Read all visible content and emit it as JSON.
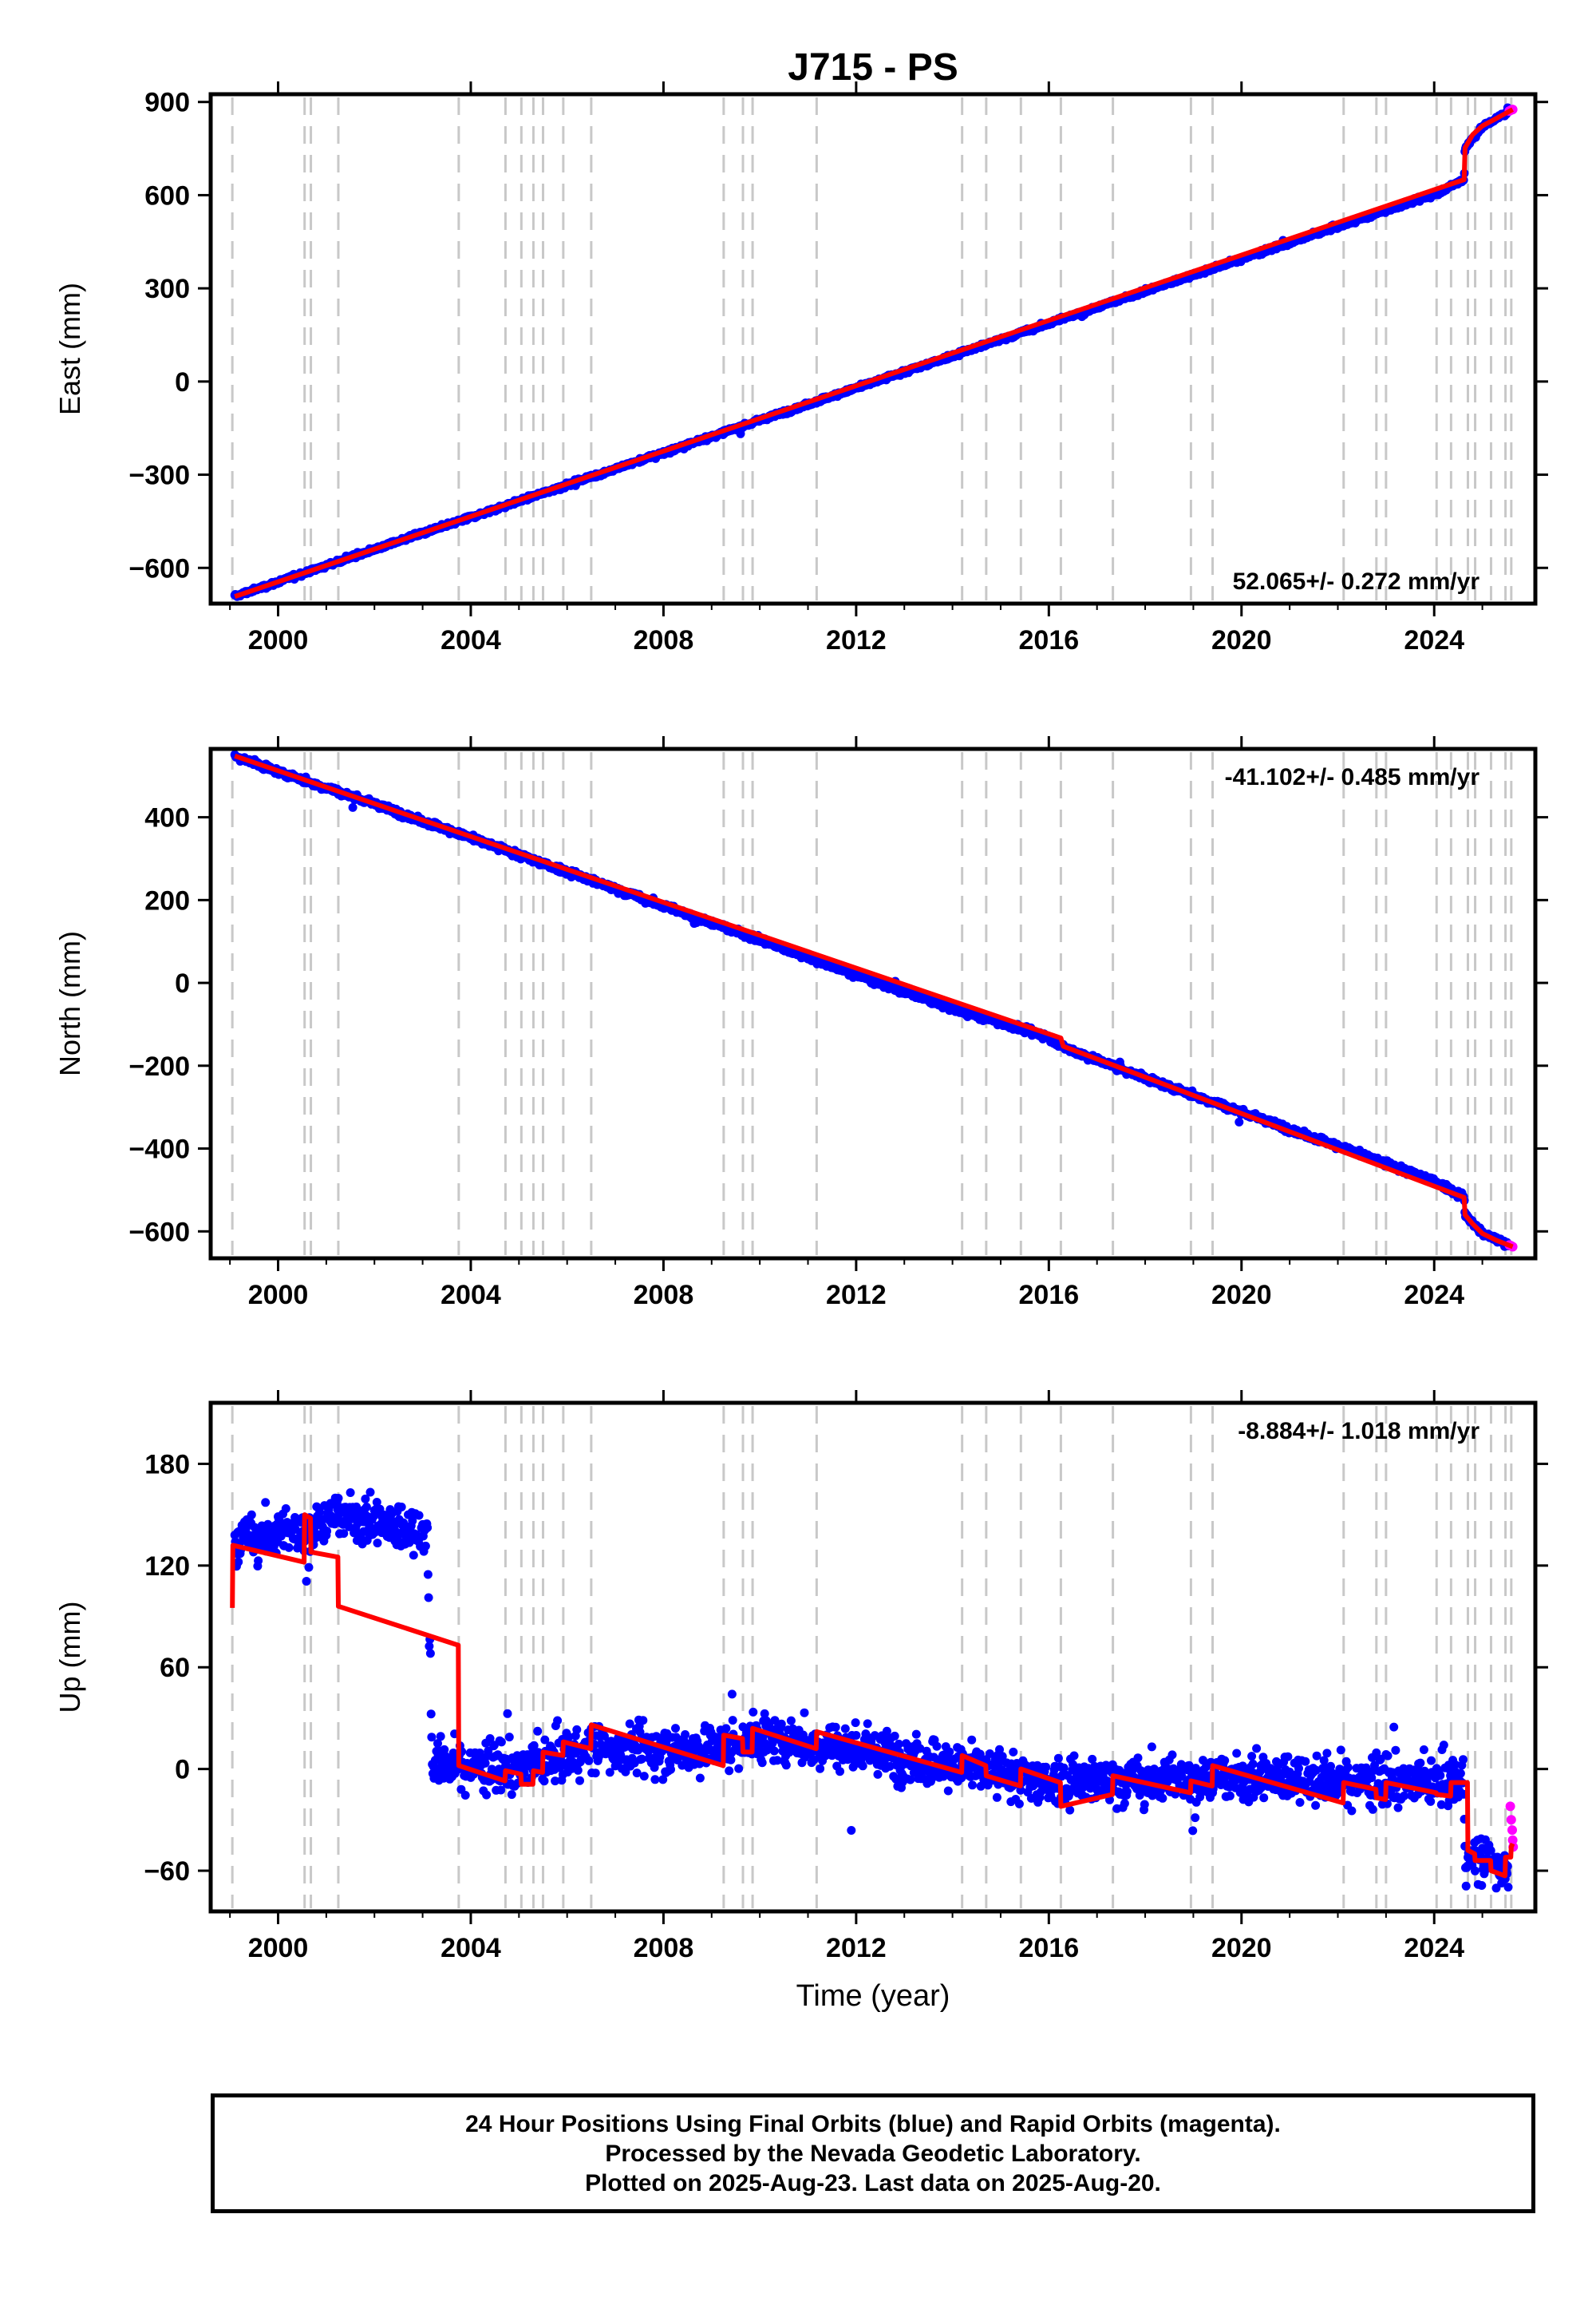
{
  "title": "J715 - PS",
  "xlabel": "Time (year)",
  "x_ticks": [
    2000,
    2004,
    2008,
    2012,
    2016,
    2020,
    2024
  ],
  "x_range": [
    1998.6,
    2026.1
  ],
  "equipment_change_years": [
    1999.05,
    2000.55,
    2000.68,
    2001.25,
    2003.75,
    2004.72,
    2005.05,
    2005.3,
    2005.5,
    2005.92,
    2006.5,
    2009.25,
    2009.65,
    2009.85,
    2011.18,
    2014.2,
    2014.7,
    2015.42,
    2016.25,
    2017.33,
    2018.95,
    2019.4,
    2022.12,
    2022.8,
    2023.0,
    2024.05,
    2024.35,
    2024.7,
    2024.85,
    2025.18,
    2025.48,
    2025.6
  ],
  "colors": {
    "final": "#0000ff",
    "rapid": "#ff00ff",
    "model": "#ff0000",
    "steps": "#c8c8c8"
  },
  "footer": {
    "line1": "24 Hour Positions Using Final Orbits (blue) and Rapid Orbits (magenta).",
    "line2": "Processed by the Nevada Geodetic Laboratory.",
    "line3": "Plotted on 2025-Aug-23. Last data on 2025-Aug-20."
  },
  "chart_data": [
    {
      "type": "scatter",
      "panel": "east",
      "ylabel": "East (mm)",
      "rate_label": "52.065+/- 0.272 mm/yr",
      "rate_position": "bottom-right",
      "y_ticks": [
        -600,
        -300,
        0,
        300,
        600,
        900
      ],
      "ylim": [
        -715,
        925
      ],
      "noise_mm": 6,
      "series": [
        {
          "name": "Final Orbits",
          "color": "#0000ff",
          "x": [
            1999.1,
            2000.0,
            2002.0,
            2004.0,
            2006.0,
            2008.0,
            2010.0,
            2012.0,
            2014.0,
            2016.0,
            2018.0,
            2020.0,
            2022.0,
            2024.0,
            2024.62,
            2024.64,
            2025.0,
            2025.55
          ],
          "y": [
            -692,
            -645,
            -540,
            -437,
            -333,
            -229,
            -125,
            -21,
            83,
            187,
            291,
            395,
            499,
            603,
            650,
            752,
            820,
            870
          ]
        },
        {
          "name": "Rapid Orbits",
          "color": "#ff00ff",
          "x": [
            2025.56,
            2025.6,
            2025.63
          ],
          "y": [
            871,
            874,
            876
          ]
        },
        {
          "name": "Model",
          "color": "#ff0000",
          "x": [
            1999.1,
            2024.62,
            2024.64,
            2024.8,
            2025.0,
            2025.3,
            2025.63
          ],
          "y": [
            -692,
            650,
            752,
            795,
            823,
            848,
            876
          ]
        }
      ]
    },
    {
      "type": "scatter",
      "panel": "north",
      "ylabel": "North (mm)",
      "rate_label": "-41.102+/- 0.485 mm/yr",
      "rate_position": "top-right",
      "y_ticks": [
        -600,
        -400,
        -200,
        0,
        200,
        400
      ],
      "ylim": [
        -665,
        565
      ],
      "noise_mm": 7,
      "series": [
        {
          "name": "Final Orbits",
          "color": "#0000ff",
          "x": [
            1999.1,
            2000.0,
            2002.0,
            2004.0,
            2006.0,
            2008.0,
            2010.0,
            2012.0,
            2014.0,
            2016.0,
            2016.3,
            2018.0,
            2020.0,
            2022.0,
            2024.0,
            2024.62,
            2024.64,
            2025.0,
            2025.55
          ],
          "y": [
            548,
            510,
            432,
            350,
            268,
            186,
            104,
            20,
            -62,
            -130,
            -155,
            -230,
            -312,
            -394,
            -478,
            -518,
            -560,
            -605,
            -632
          ]
        },
        {
          "name": "Rapid Orbits",
          "color": "#ff00ff",
          "x": [
            2025.56,
            2025.6,
            2025.63
          ],
          "y": [
            -633,
            -635,
            -637
          ]
        },
        {
          "name": "Model",
          "color": "#ff0000",
          "x": [
            1999.1,
            2016.25,
            2016.3,
            2024.62,
            2024.64,
            2024.8,
            2025.0,
            2025.3,
            2025.63
          ],
          "y": [
            548,
            -133,
            -153,
            -518,
            -560,
            -582,
            -605,
            -622,
            -637
          ]
        }
      ]
    },
    {
      "type": "scatter",
      "panel": "up",
      "ylabel": "Up (mm)",
      "rate_label": "-8.884+/- 1.018 mm/yr",
      "rate_position": "top-right",
      "y_ticks": [
        -60,
        0,
        60,
        120,
        180
      ],
      "ylim": [
        -84,
        216
      ],
      "noise_mm": 13,
      "series": [
        {
          "name": "Final Orbits",
          "color": "#0000ff",
          "x": [
            1999.1,
            2000.5,
            2001.3,
            2003.1,
            2003.2,
            2005.0,
            2006.5,
            2009.0,
            2010.0,
            2012.0,
            2016.0,
            2018.0,
            2020.0,
            2024.0,
            2024.62,
            2024.64,
            2025.55
          ],
          "y": [
            135,
            140,
            150,
            138,
            4,
            0,
            12,
            12,
            18,
            12,
            -8,
            -7,
            -5,
            -8,
            -8,
            -52,
            -58
          ]
        },
        {
          "name": "Rapid Orbits",
          "color": "#ff00ff",
          "x": [
            2025.58,
            2025.6,
            2025.62,
            2025.63,
            2025.64
          ],
          "y": [
            -22,
            -30,
            -36,
            -42,
            -46
          ]
        },
        {
          "name": "Model",
          "color": "#ff0000",
          "x": [
            1999.05,
            1999.06,
            2000.54,
            2000.55,
            2000.67,
            2000.68,
            2001.24,
            2001.25,
            2003.74,
            2003.75,
            2004.71,
            2004.72,
            2005.04,
            2005.05,
            2005.29,
            2005.3,
            2005.49,
            2005.5,
            2005.91,
            2005.92,
            2006.49,
            2006.5,
            2009.24,
            2009.25,
            2009.64,
            2009.65,
            2009.84,
            2009.85,
            2011.17,
            2011.18,
            2014.19,
            2014.2,
            2014.69,
            2014.7,
            2015.41,
            2015.42,
            2016.24,
            2016.25,
            2017.32,
            2017.33,
            2018.94,
            2018.95,
            2019.39,
            2019.4,
            2022.11,
            2022.12,
            2022.79,
            2022.8,
            2022.99,
            2023.0,
            2024.04,
            2024.05,
            2024.34,
            2024.35,
            2024.69,
            2024.7,
            2024.84,
            2024.85,
            2025.17,
            2025.18,
            2025.47,
            2025.48,
            2025.59,
            2025.6,
            2025.63
          ],
          "y": [
            95,
            132,
            122,
            150,
            148,
            128,
            125,
            96,
            73,
            2,
            -7,
            -1,
            -3,
            -9,
            -9,
            -1,
            -2,
            10,
            8,
            16,
            12,
            26,
            2,
            20,
            18,
            10,
            10,
            24,
            12,
            22,
            -2,
            8,
            2,
            -4,
            -10,
            0,
            -8,
            -22,
            -15,
            -4,
            -14,
            -7,
            -10,
            2,
            -20,
            -8,
            -12,
            -17,
            -18,
            -8,
            -14,
            -15,
            -16,
            -8,
            -8,
            -48,
            -50,
            -54,
            -54,
            -60,
            -63,
            -52,
            -52,
            -46,
            -44
          ]
        }
      ]
    }
  ]
}
